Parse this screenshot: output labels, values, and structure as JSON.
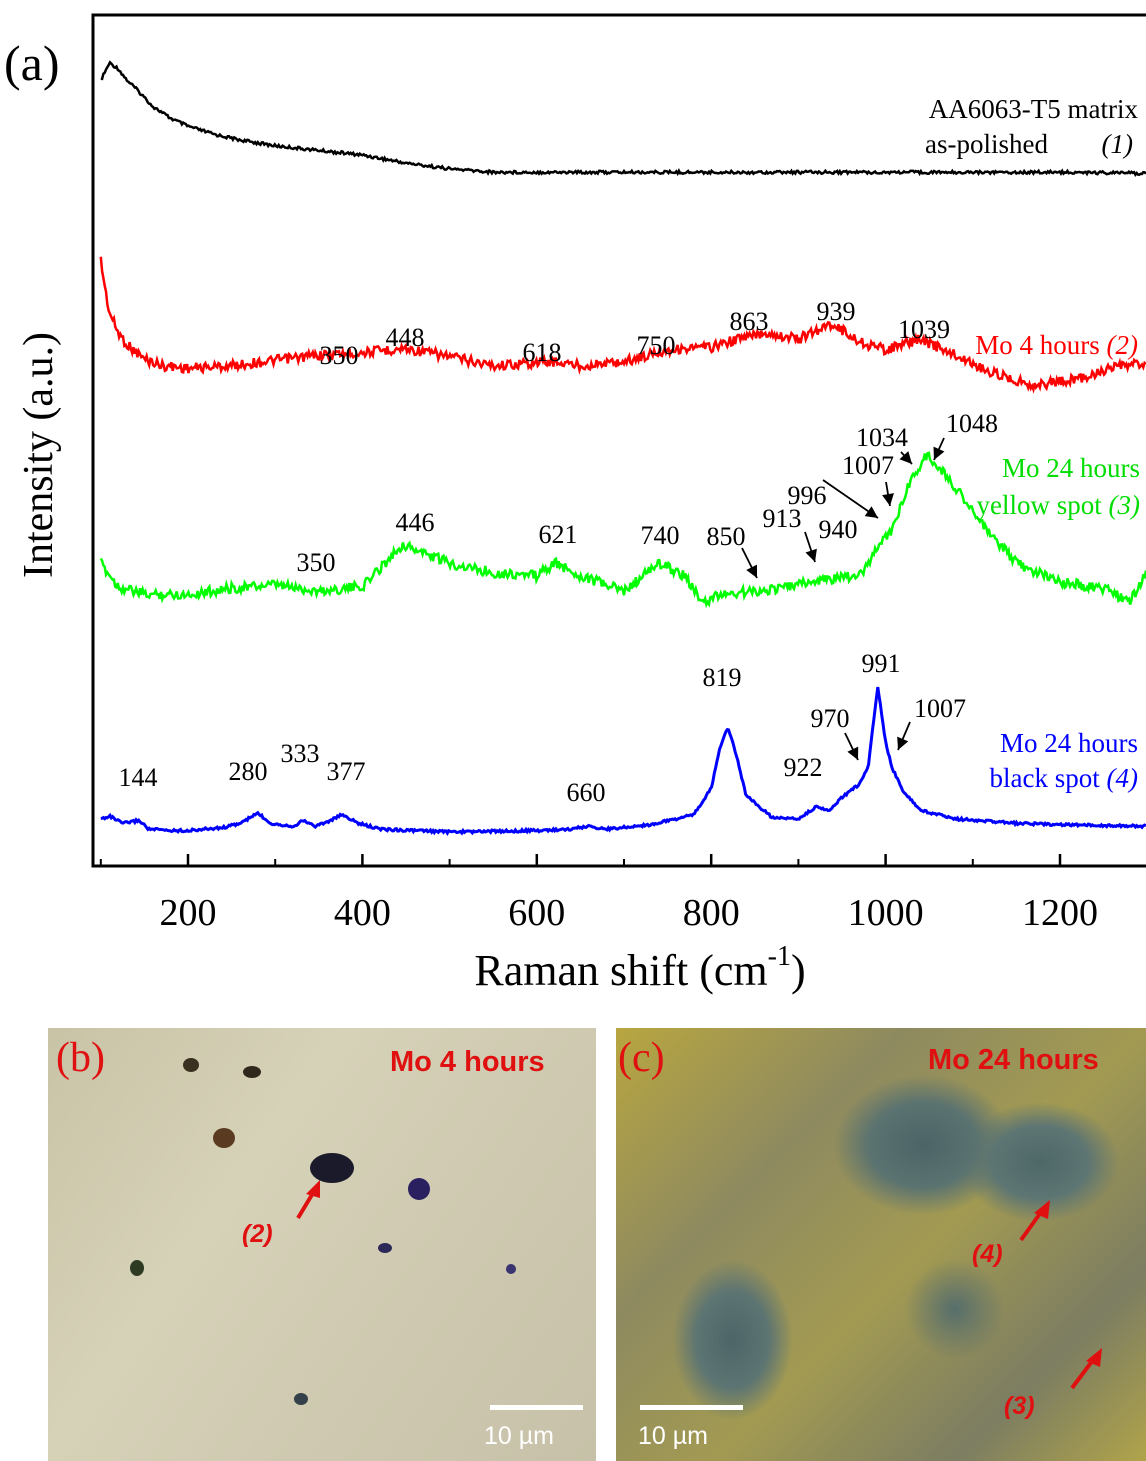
{
  "panel_a_label": "(a)",
  "chart_data": {
    "type": "line",
    "xlabel": "Raman shift (cm",
    "xlabel_sup": "-1",
    "xlabel_end": ")",
    "ylabel": "Intensity (a.u.)",
    "xlim": [
      100,
      1300
    ],
    "x_ticks": [
      200,
      400,
      600,
      800,
      1000,
      1200
    ],
    "x_minor_ticks": [
      100,
      300,
      500,
      700,
      900,
      1100,
      1300
    ],
    "y_ticks_shown": false,
    "series": [
      {
        "name": "AA6063-T5 matrix as-polished (1)",
        "legend_lines": [
          "AA6063-T5 matrix",
          "as-polished"
        ],
        "legend_index": "(1)",
        "color": "#000000",
        "x": [
          100,
          110,
          120,
          130,
          140,
          150,
          160,
          180,
          200,
          230,
          260,
          300,
          350,
          400,
          450,
          500,
          550,
          600,
          700,
          800,
          900,
          1000,
          1100,
          1200,
          1300
        ],
        "y": [
          0.85,
          1.0,
          0.95,
          0.85,
          0.78,
          0.7,
          0.62,
          0.52,
          0.45,
          0.38,
          0.33,
          0.28,
          0.24,
          0.2,
          0.13,
          0.08,
          0.05,
          0.05,
          0.05,
          0.05,
          0.05,
          0.05,
          0.05,
          0.05,
          0.04
        ]
      },
      {
        "name": "Mo 4 hours (2)",
        "legend_lines": [
          "Mo 4 hours "
        ],
        "legend_index": "(2)",
        "color": "#ff0000",
        "x": [
          100,
          105,
          110,
          120,
          130,
          150,
          170,
          200,
          250,
          300,
          350,
          400,
          448,
          500,
          550,
          618,
          650,
          700,
          750,
          800,
          830,
          863,
          900,
          939,
          970,
          1000,
          1039,
          1080,
          1120,
          1170,
          1220,
          1260,
          1300
        ],
        "y": [
          1.0,
          0.78,
          0.6,
          0.45,
          0.36,
          0.25,
          0.2,
          0.18,
          0.2,
          0.24,
          0.28,
          0.3,
          0.33,
          0.27,
          0.2,
          0.23,
          0.2,
          0.23,
          0.32,
          0.34,
          0.4,
          0.45,
          0.4,
          0.52,
          0.38,
          0.32,
          0.4,
          0.28,
          0.15,
          0.05,
          0.1,
          0.18,
          0.22
        ]
      },
      {
        "name": "Mo 24 hours yellow spot (3)",
        "legend_lines": [
          "Mo 24 hours",
          "yellow spot "
        ],
        "legend_index": "(3)",
        "color": "#00ff00",
        "x": [
          100,
          120,
          150,
          200,
          250,
          300,
          350,
          400,
          446,
          500,
          550,
          600,
          621,
          650,
          700,
          740,
          770,
          790,
          810,
          850,
          880,
          913,
          940,
          970,
          985,
          996,
          1007,
          1020,
          1034,
          1048,
          1070,
          1090,
          1110,
          1150,
          1200,
          1250,
          1280,
          1300
        ],
        "y": [
          0.3,
          0.15,
          0.1,
          0.1,
          0.14,
          0.16,
          0.12,
          0.15,
          0.42,
          0.3,
          0.24,
          0.22,
          0.3,
          0.22,
          0.12,
          0.3,
          0.22,
          0.04,
          0.1,
          0.12,
          0.14,
          0.18,
          0.2,
          0.22,
          0.35,
          0.45,
          0.5,
          0.72,
          0.88,
          1.0,
          0.85,
          0.72,
          0.55,
          0.3,
          0.18,
          0.14,
          0.05,
          0.25
        ]
      },
      {
        "name": "Mo 24 hours black spot (4)",
        "legend_lines": [
          "Mo 24 hours",
          "black spot "
        ],
        "legend_index": "(4)",
        "color": "#0000ff",
        "x": [
          100,
          110,
          125,
          135,
          144,
          155,
          180,
          200,
          240,
          260,
          280,
          295,
          320,
          333,
          345,
          360,
          377,
          395,
          420,
          500,
          600,
          640,
          660,
          680,
          730,
          780,
          800,
          810,
          819,
          828,
          840,
          870,
          900,
          922,
          935,
          950,
          970,
          980,
          991,
          1000,
          1007,
          1020,
          1040,
          1080,
          1150,
          1200,
          1300
        ],
        "y": [
          0.09,
          0.11,
          0.06,
          0.07,
          0.08,
          0.02,
          0.01,
          0.01,
          0.03,
          0.06,
          0.13,
          0.06,
          0.04,
          0.08,
          0.04,
          0.07,
          0.12,
          0.06,
          0.02,
          0.0,
          0.01,
          0.02,
          0.04,
          0.02,
          0.05,
          0.12,
          0.3,
          0.58,
          0.72,
          0.55,
          0.25,
          0.1,
          0.09,
          0.18,
          0.14,
          0.24,
          0.33,
          0.45,
          1.0,
          0.62,
          0.45,
          0.28,
          0.15,
          0.09,
          0.06,
          0.05,
          0.04
        ]
      }
    ],
    "annotations": {
      "matrix": [],
      "mo4": [
        "350",
        "448",
        "618",
        "750",
        "863",
        "939",
        "1039"
      ],
      "yellow": [
        "350",
        "446",
        "621",
        "740",
        "850",
        "913",
        "940",
        "996",
        "1007",
        "1034",
        "1048"
      ],
      "black": [
        "144",
        "280",
        "333",
        "377",
        "660",
        "819",
        "922",
        "970",
        "991",
        "1007"
      ]
    }
  },
  "panel_b": {
    "label": "(b)",
    "title": "Mo 4 hours",
    "marker": "(2)",
    "scale": "10 µm"
  },
  "panel_c": {
    "label": "(c)",
    "title": "Mo 24 hours",
    "markers": [
      "(4)",
      "(3)"
    ],
    "scale": "10 µm"
  }
}
